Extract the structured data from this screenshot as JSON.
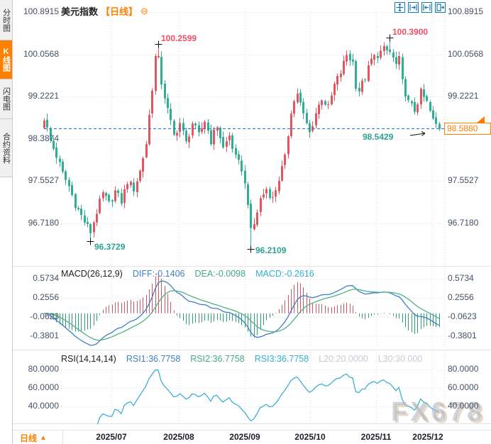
{
  "window": {
    "watermark": "FX678"
  },
  "sidebar": {
    "tabs": [
      {
        "label": "分时图",
        "active": false
      },
      {
        "label": "K线图",
        "active": true
      },
      {
        "label": "闪电图",
        "active": false
      },
      {
        "label": "合约资料",
        "active": false
      }
    ]
  },
  "header": {
    "symbol": "美元指数",
    "period_tag": "【日线】",
    "zoom_out_glyph": "⊖"
  },
  "toolbar": {
    "icons": [
      "crosshair-tool",
      "range-zoom-in-tool",
      "range-zoom-out-tool",
      "reset-view-tool"
    ]
  },
  "bottom_bar": {
    "period_label": "日线",
    "period_arrow": "▲"
  },
  "colors": {
    "accent_orange": "#ff8000",
    "up_red": "#e4565f",
    "down_green": "#2fae95",
    "hist_red": "#cf5560",
    "hist_green": "#2f9e77",
    "diff_blue": "#3d7dc8",
    "dea_green": "#4fb284",
    "rsi_cyan": "#2ea9d6",
    "current_price_line": "#1d7ad2",
    "annotation_red": "#f04e63",
    "annotation_teal": "#2ca393",
    "grid": "#d9dee6",
    "separator": "#dfe3e8"
  },
  "chart_data": [
    {
      "type": "candlestick",
      "symbol": "美元指数",
      "period": "日线",
      "y_axis_labels": [
        "100.8915",
        "100.0568",
        "99.2221",
        "98.3874",
        "97.5527",
        "96.7180"
      ],
      "y_ticks": [
        100.8915,
        100.0568,
        99.2221,
        98.3874,
        97.5527,
        96.718
      ],
      "right_axis_labels": [
        "100.8915",
        "100.0568",
        "99.2221",
        "97.5527",
        "96.7180"
      ],
      "x_axis_labels": [
        "2025/07",
        "2025/08",
        "2025/09",
        "2025/10",
        "2025/11",
        "2025/12"
      ],
      "ylim": [
        96.21,
        100.8915
      ],
      "current_price_label": "98.5880",
      "current_price": 98.588,
      "annotations": [
        {
          "text": "100.2599",
          "kind": "swing-high",
          "candle_index": 37,
          "price": 100.2599
        },
        {
          "text": "100.3900",
          "kind": "swing-high",
          "candle_index": 112,
          "price": 100.39
        },
        {
          "text": "96.3729",
          "kind": "swing-low",
          "candle_index": 15,
          "price": 96.3729
        },
        {
          "text": "96.2109",
          "kind": "swing-low",
          "candle_index": 67,
          "price": 96.2109
        },
        {
          "text": "98.5429",
          "kind": "recent-low",
          "candle_index": 128,
          "price": 98.5429
        }
      ],
      "num_candles": 129,
      "close_anchors": [
        [
          0,
          98.8
        ],
        [
          2,
          98.35
        ],
        [
          4,
          98.05
        ],
        [
          6,
          97.7
        ],
        [
          8,
          97.45
        ],
        [
          10,
          97.1
        ],
        [
          13,
          96.75
        ],
        [
          15,
          96.55
        ],
        [
          17,
          96.95
        ],
        [
          19,
          97.3
        ],
        [
          21,
          97.1
        ],
        [
          23,
          97.35
        ],
        [
          25,
          97.15
        ],
        [
          27,
          97.55
        ],
        [
          29,
          97.4
        ],
        [
          31,
          97.75
        ],
        [
          33,
          98.3
        ],
        [
          35,
          99.4
        ],
        [
          36,
          100.0
        ],
        [
          37,
          99.95
        ],
        [
          38,
          99.5
        ],
        [
          40,
          98.95
        ],
        [
          42,
          98.45
        ],
        [
          44,
          98.7
        ],
        [
          46,
          98.3
        ],
        [
          48,
          98.7
        ],
        [
          50,
          98.45
        ],
        [
          52,
          98.75
        ],
        [
          54,
          98.35
        ],
        [
          56,
          98.65
        ],
        [
          58,
          98.2
        ],
        [
          60,
          98.45
        ],
        [
          62,
          98.0
        ],
        [
          64,
          97.8
        ],
        [
          66,
          97.15
        ],
        [
          67,
          96.55
        ],
        [
          68,
          96.7
        ],
        [
          70,
          97.2
        ],
        [
          72,
          97.4
        ],
        [
          74,
          97.2
        ],
        [
          76,
          97.6
        ],
        [
          78,
          98.0
        ],
        [
          80,
          98.95
        ],
        [
          82,
          99.3
        ],
        [
          84,
          98.85
        ],
        [
          86,
          98.5
        ],
        [
          88,
          98.9
        ],
        [
          90,
          99.2
        ],
        [
          92,
          99.0
        ],
        [
          94,
          99.45
        ],
        [
          96,
          99.7
        ],
        [
          98,
          100.05
        ],
        [
          100,
          99.9
        ],
        [
          101,
          99.45
        ],
        [
          102,
          99.35
        ],
        [
          104,
          99.6
        ],
        [
          106,
          99.95
        ],
        [
          108,
          100.05
        ],
        [
          110,
          100.15
        ],
        [
          112,
          100.1
        ],
        [
          114,
          99.85
        ],
        [
          115,
          99.95
        ],
        [
          116,
          99.5
        ],
        [
          118,
          99.1
        ],
        [
          120,
          98.95
        ],
        [
          122,
          99.3
        ],
        [
          124,
          99.1
        ],
        [
          126,
          98.75
        ],
        [
          128,
          98.588
        ]
      ]
    },
    {
      "type": "macd",
      "label": "MACD(26,12,9)",
      "params": [
        26,
        12,
        9
      ],
      "diff_label": "DIFF:-0.1406",
      "dea_label": "DEA:-0.0098",
      "macd_label": "MACD:-0.2616",
      "diff": -0.1406,
      "dea": -0.0098,
      "macd": -0.2616,
      "y_axis_labels": [
        "0.5734",
        "0.2556",
        "-0.0623",
        "-0.3801"
      ],
      "y_ticks": [
        0.5734,
        0.2556,
        -0.0623,
        -0.3801
      ]
    },
    {
      "type": "rsi",
      "label": "RSI(14,14,14)",
      "params": [
        14,
        14,
        14
      ],
      "rsi1_label": "RSI1:36.7758",
      "rsi2_label": "RSI2:36.7758",
      "rsi3_label": "RSI3:36.7758",
      "l20_label": "L20:20.0000",
      "l30_label": "L30:30.000",
      "rsi1": 36.7758,
      "rsi2": 36.7758,
      "rsi3": 36.7758,
      "y_axis_labels": [
        "80.0000",
        "60.0000",
        "40.0000"
      ],
      "y_ticks": [
        80,
        60,
        40
      ]
    }
  ]
}
